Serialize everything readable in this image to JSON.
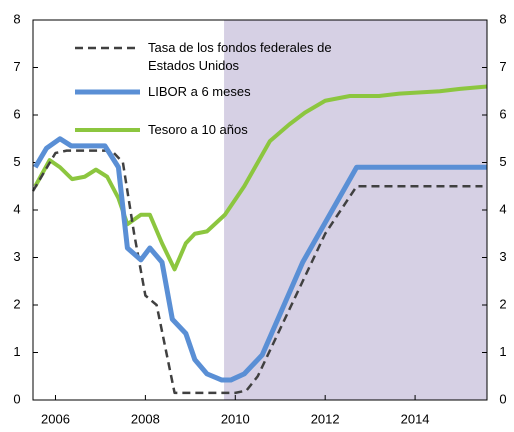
{
  "chart_data": {
    "type": "line",
    "xlim": [
      2005.5,
      2015.6
    ],
    "xticks": [
      2006,
      2008,
      2010,
      2012,
      2014
    ],
    "ylim": [
      0,
      8
    ],
    "yticks": [
      0,
      1,
      2,
      3,
      4,
      5,
      6,
      7,
      8
    ],
    "y2lim": [
      0,
      8
    ],
    "y2ticks": [
      0,
      1,
      2,
      3,
      4,
      5,
      6,
      7,
      8
    ],
    "shaded_region": [
      2009.75,
      2015.6
    ],
    "shade_color": "#d6d0e4",
    "legend": "upper left",
    "series": [
      {
        "name": "Tasa de los fondos federales de Estados Unidos",
        "color": "#404040",
        "dashed": true,
        "x": [
          2005.5,
          2005.75,
          2006,
          2006.25,
          2006.5,
          2007,
          2007.25,
          2007.5,
          2007.75,
          2008,
          2008.25,
          2008.65,
          2009,
          2009.5,
          2010,
          2010.25,
          2010.5,
          2011,
          2011.5,
          2012,
          2012.7,
          2013,
          2014,
          2015,
          2015.5
        ],
        "values": [
          4.4,
          4.8,
          5.2,
          5.25,
          5.25,
          5.25,
          5.25,
          5.0,
          3.5,
          2.2,
          2.0,
          0.15,
          0.15,
          0.15,
          0.15,
          0.2,
          0.5,
          1.5,
          2.5,
          3.5,
          4.5,
          4.5,
          4.5,
          4.5,
          4.5
        ]
      },
      {
        "name": "LIBOR a 6 meses",
        "color": "#5a8fd5",
        "dashed": false,
        "x": [
          2005.55,
          2005.8,
          2006.1,
          2006.35,
          2007.1,
          2007.4,
          2007.6,
          2007.9,
          2008.1,
          2008.37,
          2008.6,
          2008.9,
          2009.1,
          2009.37,
          2009.7,
          2009.9,
          2010.2,
          2010.6,
          2011.5,
          2012.7,
          2013.5,
          2014.5,
          2015.6
        ],
        "values": [
          4.9,
          5.3,
          5.5,
          5.35,
          5.35,
          4.9,
          3.2,
          2.95,
          3.2,
          2.9,
          1.7,
          1.4,
          0.85,
          0.55,
          0.42,
          0.42,
          0.55,
          0.95,
          2.9,
          4.9,
          4.9,
          4.9,
          4.9
        ]
      },
      {
        "name": "Tesoro a 10 años",
        "color": "#8cc63f",
        "dashed": false,
        "x": [
          2005.55,
          2005.87,
          2006.1,
          2006.37,
          2006.65,
          2006.9,
          2007.15,
          2007.4,
          2007.6,
          2007.9,
          2008.1,
          2008.37,
          2008.65,
          2008.9,
          2009.1,
          2009.37,
          2009.77,
          2010.2,
          2010.5,
          2010.77,
          2011.2,
          2011.55,
          2012.0,
          2012.55,
          2013.2,
          2013.65,
          2014.55,
          2015.0,
          2015.6
        ],
        "values": [
          4.5,
          5.05,
          4.9,
          4.65,
          4.7,
          4.85,
          4.7,
          4.25,
          3.7,
          3.9,
          3.9,
          3.3,
          2.75,
          3.3,
          3.5,
          3.55,
          3.9,
          4.5,
          5.0,
          5.45,
          5.8,
          6.05,
          6.3,
          6.4,
          6.4,
          6.45,
          6.5,
          6.55,
          6.6
        ]
      }
    ]
  }
}
